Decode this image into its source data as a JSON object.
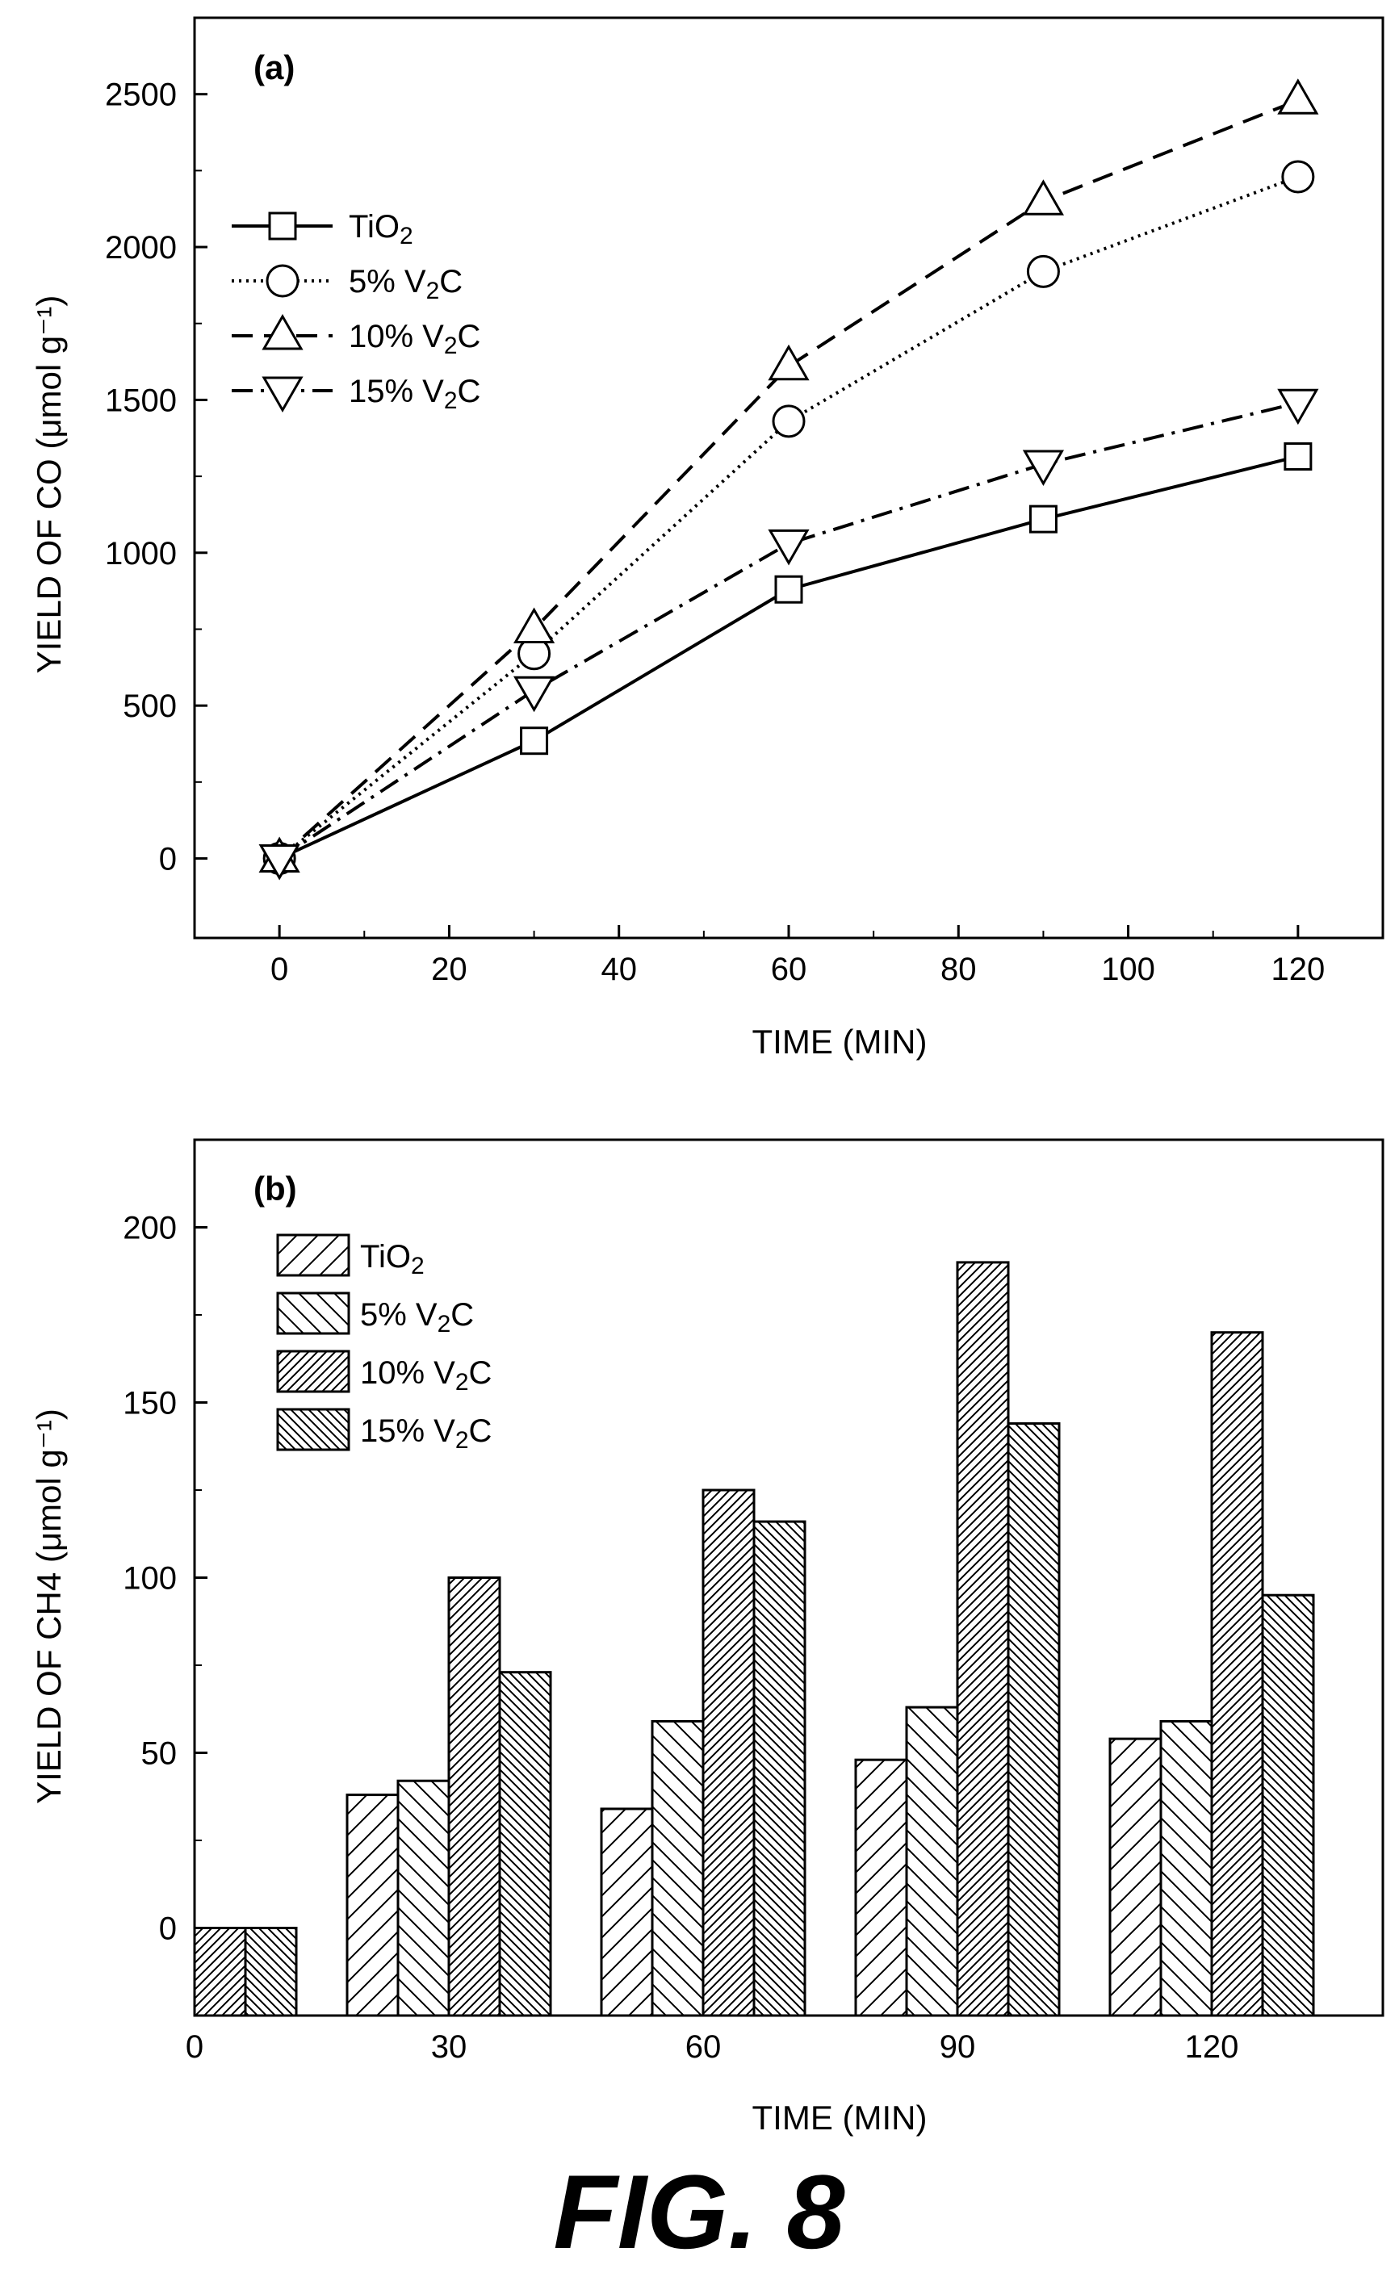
{
  "figure": {
    "caption": "FIG. 8"
  },
  "chart_data": [
    {
      "type": "line",
      "panel_label": "(a)",
      "xlabel": "TIME (MIN)",
      "ylabel": "YIELD OF CO (μmol g⁻¹)",
      "xlim": [
        -10,
        130
      ],
      "ylim": [
        -260,
        2750
      ],
      "xticks": [
        0,
        20,
        40,
        60,
        80,
        100,
        120
      ],
      "yticks": [
        0,
        500,
        1000,
        1500,
        2000,
        2500
      ],
      "legend_position": "upper-left",
      "x": [
        0,
        30,
        60,
        90,
        120
      ],
      "series": [
        {
          "name": "TiO2",
          "marker": "square",
          "dash": "solid",
          "values": [
            0,
            385,
            880,
            1110,
            1315
          ]
        },
        {
          "name": "5% V2C",
          "marker": "circle",
          "dash": "dotted",
          "values": [
            0,
            670,
            1430,
            1920,
            2230
          ]
        },
        {
          "name": "10% V2C",
          "marker": "triangle-up",
          "dash": "dashed",
          "values": [
            0,
            750,
            1610,
            2150,
            2480
          ]
        },
        {
          "name": "15% V2C",
          "marker": "triangle-down",
          "dash": "dash-dot",
          "values": [
            0,
            550,
            1030,
            1290,
            1490
          ]
        }
      ]
    },
    {
      "type": "bar",
      "panel_label": "(b)",
      "xlabel": "TIME (MIN)",
      "ylabel": "YIELD OF CH4 (μmol g⁻¹)",
      "ylim": [
        -25,
        225
      ],
      "yticks": [
        0,
        50,
        100,
        150,
        200
      ],
      "categories": [
        "0",
        "30",
        "60",
        "90",
        "120"
      ],
      "legend_position": "upper-left",
      "series": [
        {
          "name": "TiO2",
          "pattern": "sparse-right",
          "values": [
            0,
            38,
            34,
            48,
            54
          ]
        },
        {
          "name": "5% V2C",
          "pattern": "sparse-left",
          "values": [
            0,
            42,
            59,
            63,
            59
          ]
        },
        {
          "name": "10% V2C",
          "pattern": "dense-right",
          "values": [
            0,
            100,
            125,
            190,
            170
          ]
        },
        {
          "name": "15% V2C",
          "pattern": "dense-left",
          "values": [
            0,
            73,
            116,
            144,
            95
          ]
        }
      ]
    }
  ]
}
